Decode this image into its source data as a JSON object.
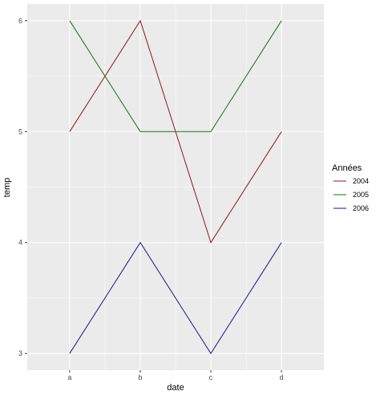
{
  "chart_data": {
    "type": "line",
    "categories": [
      "a",
      "b",
      "c",
      "d"
    ],
    "series": [
      {
        "name": "2004",
        "color": "#8b1a1a",
        "values": [
          5,
          6,
          4,
          5
        ]
      },
      {
        "name": "2005",
        "color": "#1a6e1a",
        "values": [
          6,
          5,
          5,
          6
        ]
      },
      {
        "name": "2006",
        "color": "#1a1a8b",
        "values": [
          3,
          4,
          3,
          4
        ]
      }
    ],
    "xlabel": "date",
    "ylabel": "temp",
    "ylim": [
      2.85,
      6.15
    ],
    "yticks": [
      "3",
      "4",
      "5",
      "6"
    ],
    "grid": true,
    "panel_background": "#ebebeb",
    "grid_color": "#ffffff",
    "legend": {
      "title": "Années",
      "position": "right"
    }
  }
}
